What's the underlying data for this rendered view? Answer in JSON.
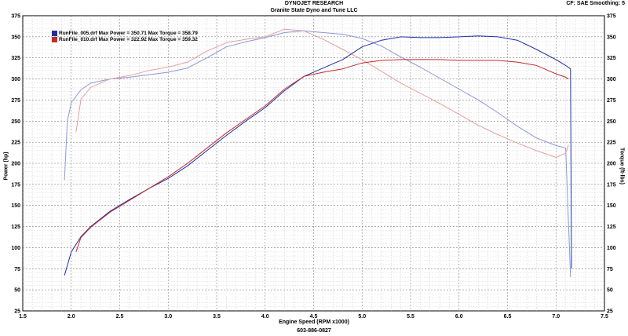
{
  "header": {
    "title": "DYNOJET RESEARCH",
    "subtitle": "Granite State Dyno and Tune LLC",
    "right_info": "CF: SAE  Smoothing: 5"
  },
  "footer": {
    "phone": "603-886-0827"
  },
  "chart_data": {
    "type": "line",
    "xlabel": "Engine Speed (RPM x1000)",
    "ylabel": "Power (hp)",
    "y2label": "Torque (ft-lbs)",
    "xlim": [
      1.5,
      7.5
    ],
    "ylim": [
      25,
      375
    ],
    "x_ticks": [
      "1.5",
      "2.0",
      "2.5",
      "3.0",
      "3.5",
      "4.0",
      "4.5",
      "5.0",
      "5.5",
      "6.0",
      "6.5",
      "7.0",
      "7.5"
    ],
    "y_ticks": [
      "25",
      "50",
      "75",
      "100",
      "125",
      "150",
      "175",
      "200",
      "225",
      "250",
      "275",
      "300",
      "325",
      "350",
      "375"
    ],
    "grid": true,
    "legend": [
      {
        "label": "RunFile_005.drf Max Power = 350.71 Max Torque = 358.79",
        "color": "#1f2fa8"
      },
      {
        "label": "RunFile_010.drf Max Power = 322.92 Max Torque = 359.32",
        "color": "#c42a2a"
      }
    ],
    "series": [
      {
        "name": "RunFile_005.drf",
        "quantity": "power",
        "color": "#1f2fa8",
        "x": [
          1.93,
          2.0,
          2.1,
          2.2,
          2.4,
          2.6,
          2.8,
          3.0,
          3.2,
          3.4,
          3.6,
          3.8,
          4.0,
          4.2,
          4.4,
          4.6,
          4.8,
          5.0,
          5.2,
          5.4,
          5.6,
          5.8,
          6.0,
          6.2,
          6.4,
          6.6,
          6.8,
          7.0,
          7.1,
          7.15,
          7.16
        ],
        "y": [
          67,
          95,
          113,
          125,
          143,
          157,
          170,
          182,
          197,
          215,
          233,
          250,
          266,
          286,
          303,
          313,
          323,
          338,
          346,
          350,
          349,
          349,
          350,
          351,
          350,
          346,
          335,
          323,
          316,
          312,
          75
        ]
      },
      {
        "name": "RunFile_010.drf",
        "quantity": "power",
        "color": "#c42a2a",
        "x": [
          2.05,
          2.1,
          2.2,
          2.4,
          2.6,
          2.8,
          3.0,
          3.2,
          3.4,
          3.6,
          3.8,
          4.0,
          4.2,
          4.4,
          4.6,
          4.8,
          5.0,
          5.2,
          5.4,
          5.6,
          5.8,
          6.0,
          6.2,
          6.4,
          6.6,
          6.8,
          7.0,
          7.1,
          7.13
        ],
        "y": [
          95,
          112,
          124,
          142,
          156,
          170,
          184,
          200,
          218,
          236,
          252,
          268,
          288,
          303,
          308,
          312,
          319,
          322,
          323,
          323,
          323,
          322,
          322,
          322,
          320,
          316,
          306,
          302,
          300
        ]
      },
      {
        "name": "RunFile_005.drf",
        "quantity": "torque",
        "color": "#8e96d8",
        "x": [
          1.93,
          1.96,
          2.0,
          2.1,
          2.2,
          2.4,
          2.6,
          2.8,
          3.0,
          3.2,
          3.4,
          3.6,
          3.8,
          4.0,
          4.2,
          4.4,
          4.6,
          4.8,
          5.0,
          5.2,
          5.4,
          5.6,
          5.8,
          6.0,
          6.2,
          6.4,
          6.6,
          6.8,
          7.0,
          7.1,
          7.15
        ],
        "y": [
          180,
          250,
          272,
          287,
          295,
          300,
          302,
          305,
          308,
          313,
          325,
          338,
          344,
          349,
          355,
          357,
          355,
          353,
          348,
          339,
          326,
          314,
          301,
          288,
          275,
          260,
          244,
          230,
          221,
          218,
          65
        ]
      },
      {
        "name": "RunFile_010.drf",
        "quantity": "torque",
        "color": "#e4a0a0",
        "x": [
          2.05,
          2.1,
          2.2,
          2.4,
          2.6,
          2.8,
          3.0,
          3.2,
          3.4,
          3.6,
          3.8,
          4.0,
          4.2,
          4.4,
          4.6,
          4.8,
          5.0,
          5.2,
          5.4,
          5.6,
          5.8,
          6.0,
          6.2,
          6.4,
          6.6,
          6.8,
          7.0,
          7.1,
          7.13
        ],
        "y": [
          237,
          276,
          290,
          300,
          304,
          310,
          314,
          320,
          333,
          343,
          347,
          350,
          359,
          357,
          347,
          335,
          323,
          309,
          295,
          283,
          271,
          258,
          245,
          234,
          224,
          215,
          207,
          212,
          222
        ]
      }
    ]
  }
}
